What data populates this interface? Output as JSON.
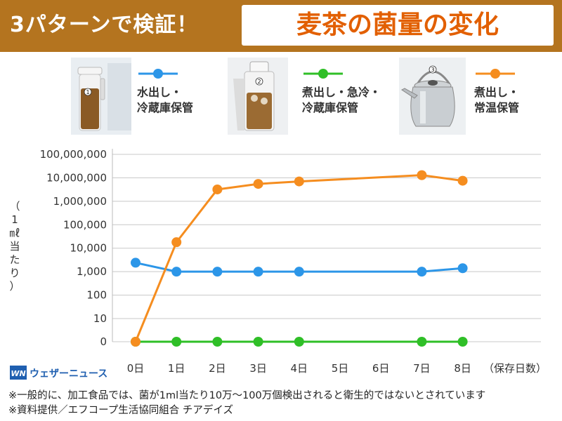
{
  "header": {
    "title_prefix": "3パターンで検証！",
    "title_main": "麦茶の菌量の変化"
  },
  "colors": {
    "header_bg": "#b4741f",
    "title_main": "#e25f00",
    "series_1": "#2c96e8",
    "series_2": "#2fbf27",
    "series_3": "#f58d1f"
  },
  "legend": [
    {
      "line1": "水出し・",
      "line2": "冷蔵庫保管",
      "photo_icon": "pitcher-1-photo",
      "badge": "1"
    },
    {
      "line1": "煮出し・急冷・",
      "line2": "冷蔵庫保管",
      "photo_icon": "pitcher-2-photo",
      "badge": "2"
    },
    {
      "line1": "煮出し・",
      "line2": "常温保管",
      "photo_icon": "kettle-3-photo",
      "badge": "3"
    }
  ],
  "chart_data": {
    "type": "line",
    "x": [
      "0日",
      "1日",
      "2日",
      "3日",
      "4日",
      "5日",
      "6日",
      "7日",
      "8日"
    ],
    "x_unit": "（保存日数）",
    "ylabel": "（1㎖当たり）",
    "y_ticks": [
      "100,000,000",
      "10,000,000",
      "1,000,000",
      "100,000",
      "10,000",
      "1,000",
      "100",
      "10",
      "0"
    ],
    "y_scale": "log (0 shown at bottom)",
    "grid": "horizontal",
    "series": [
      {
        "name": "水出し・冷蔵庫保管",
        "x": [
          "0日",
          "1日",
          "2日",
          "3日",
          "4日",
          "7日",
          "8日"
        ],
        "values": [
          2400,
          1000,
          1000,
          1000,
          1000,
          1000,
          1400
        ]
      },
      {
        "name": "煮出し・急冷・冷蔵庫保管",
        "x": [
          "0日",
          "1日",
          "2日",
          "3日",
          "4日",
          "7日",
          "8日"
        ],
        "values": [
          0,
          0,
          0,
          0,
          0,
          0,
          0
        ]
      },
      {
        "name": "煮出し・常温保管",
        "x": [
          "0日",
          "1日",
          "2日",
          "3日",
          "4日",
          "7日",
          "8日"
        ],
        "values": [
          0,
          18000,
          3200000,
          5500000,
          7000000,
          13000000,
          7500000
        ]
      }
    ]
  },
  "logo": {
    "text": "ウェザーニュース",
    "mark": "WN"
  },
  "notes": [
    "※一般的に、加工食品では、菌が1ml当たり10万～100万個検出されると衛生的ではないとされています",
    "※資料提供／エフコープ生活協同組合 チアデイズ"
  ]
}
